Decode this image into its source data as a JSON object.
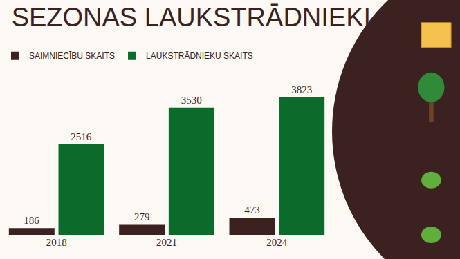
{
  "chart_data": {
    "type": "bar",
    "title": "SEZONAS LAUKSTRĀDNIEKI",
    "categories": [
      "2018",
      "2021",
      "2024"
    ],
    "series": [
      {
        "name": "SAIMNIECĪBU SKAITS",
        "color": "#3b2220",
        "values": [
          186,
          279,
          473
        ]
      },
      {
        "name": "LAUKSTRĀDNIEKU SKAITS",
        "color": "#0b6b2b",
        "values": [
          2516,
          3530,
          3823
        ]
      }
    ],
    "ylim": [
      0,
      4600
    ],
    "data_labels": true,
    "tick_labels": "x",
    "legend": "top left",
    "grid": false
  }
}
